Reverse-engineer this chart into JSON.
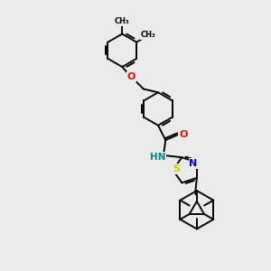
{
  "bg_color": "#ebebeb",
  "line_color": "#000000",
  "bond_width": 1.4,
  "atom_colors": {
    "O": "#ff0000",
    "N": "#0000cd",
    "S": "#cccc00",
    "HN": "#008b8b",
    "C": "#000000"
  },
  "font_size": 8,
  "fig_size": [
    3.0,
    3.0
  ],
  "dpi": 100
}
